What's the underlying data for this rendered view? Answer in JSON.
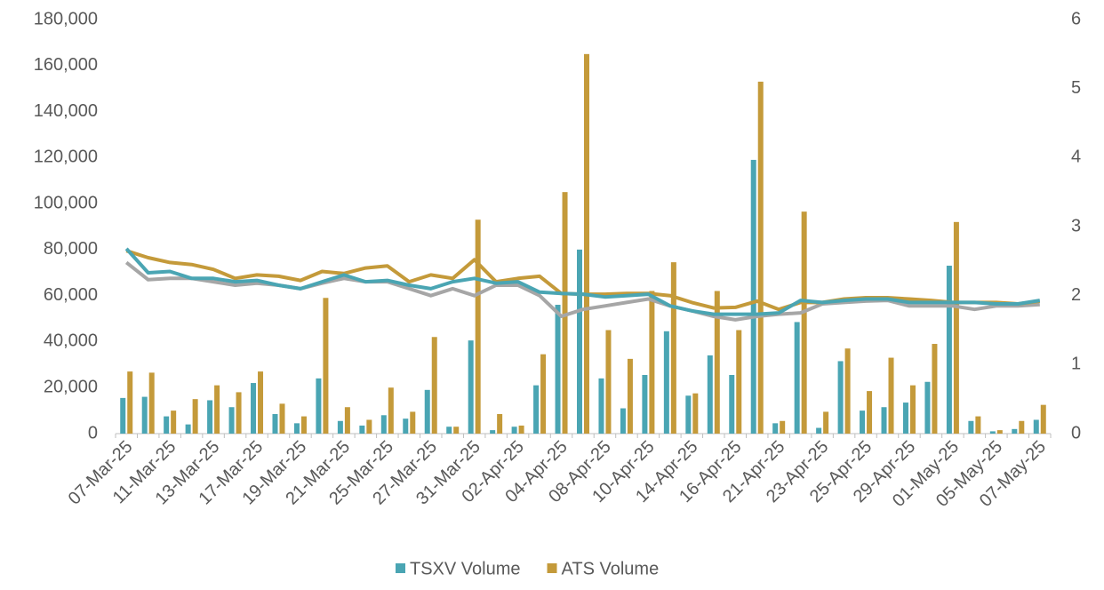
{
  "chart_data": {
    "type": "combo",
    "categories": [
      "07-Mar-25",
      null,
      "11-Mar-25",
      null,
      "13-Mar-25",
      null,
      "17-Mar-25",
      null,
      "19-Mar-25",
      null,
      "21-Mar-25",
      null,
      "25-Mar-25",
      null,
      "27-Mar-25",
      null,
      "31-Mar-25",
      null,
      "02-Apr-25",
      null,
      "04-Apr-25",
      null,
      "08-Apr-25",
      null,
      "10-Apr-25",
      null,
      "14-Apr-25",
      null,
      "16-Apr-25",
      null,
      "21-Apr-25",
      null,
      "23-Apr-25",
      null,
      "25-Apr-25",
      null,
      "29-Apr-25",
      null,
      "01-May-25",
      null,
      "05-May-25",
      null,
      "07-May-25"
    ],
    "series": [
      {
        "name": "TSXV Volume",
        "type": "bar",
        "color": "#4aa5b3",
        "values": [
          15500,
          16000,
          7500,
          4000,
          14500,
          11500,
          22000,
          8500,
          4500,
          24000,
          5500,
          3500,
          8000,
          6500,
          19000,
          3000,
          40500,
          1500,
          3000,
          21000,
          56000,
          80000,
          24000,
          11000,
          25500,
          44500,
          16500,
          34000,
          25500,
          119000,
          4500,
          48500,
          2500,
          31500,
          10000,
          11500,
          13500,
          22500,
          73000,
          5500,
          1000,
          2000,
          6000
        ]
      },
      {
        "name": "ATS Volume",
        "type": "bar",
        "color": "#c49a3a",
        "values": [
          27000,
          26500,
          10000,
          15000,
          21000,
          18000,
          27000,
          13000,
          7500,
          59000,
          11500,
          6000,
          20000,
          9500,
          42000,
          3000,
          93000,
          8500,
          3500,
          34500,
          105000,
          165000,
          45000,
          32500,
          62000,
          74500,
          17500,
          62000,
          45000,
          153000,
          5500,
          96500,
          9500,
          37000,
          18500,
          33000,
          21000,
          39000,
          92000,
          7500,
          1500,
          5500,
          12500
        ]
      },
      {
        "type": "line",
        "axis": "y2",
        "color": "#a6a6a6",
        "values": [
          2.48,
          2.23,
          2.25,
          2.25,
          2.2,
          2.15,
          2.18,
          2.15,
          2.1,
          2.18,
          2.25,
          2.2,
          2.2,
          2.1,
          2.0,
          2.1,
          2.0,
          2.15,
          2.15,
          2.0,
          1.7,
          1.8,
          1.85,
          1.9,
          1.95,
          1.85,
          1.78,
          1.7,
          1.65,
          1.7,
          1.73,
          1.75,
          1.88,
          1.9,
          1.92,
          1.93,
          1.85,
          1.85,
          1.85,
          1.8,
          1.85,
          1.85,
          1.87
        ]
      },
      {
        "type": "line",
        "axis": "y2",
        "color": "#c49a3a",
        "values": [
          2.65,
          2.55,
          2.48,
          2.45,
          2.38,
          2.25,
          2.3,
          2.28,
          2.22,
          2.35,
          2.32,
          2.4,
          2.43,
          2.2,
          2.3,
          2.25,
          2.52,
          2.2,
          2.25,
          2.28,
          2.03,
          2.02,
          2.02,
          2.03,
          2.03,
          2.0,
          1.9,
          1.82,
          1.83,
          1.92,
          1.8,
          1.9,
          1.9,
          1.95,
          1.97,
          1.97,
          1.95,
          1.93,
          1.9,
          1.9,
          1.9,
          1.88,
          1.92
        ]
      },
      {
        "type": "line",
        "axis": "y2",
        "color": "#4aa5b3",
        "values": [
          2.68,
          2.33,
          2.35,
          2.25,
          2.25,
          2.2,
          2.22,
          2.15,
          2.1,
          2.2,
          2.3,
          2.2,
          2.22,
          2.15,
          2.1,
          2.2,
          2.25,
          2.18,
          2.2,
          2.05,
          2.03,
          2.02,
          1.98,
          2.0,
          2.02,
          1.85,
          1.78,
          1.73,
          1.73,
          1.73,
          1.75,
          1.93,
          1.9,
          1.93,
          1.95,
          1.95,
          1.9,
          1.9,
          1.9,
          1.9,
          1.88,
          1.88,
          1.93
        ]
      }
    ],
    "ylim": [
      0,
      180000
    ],
    "yticks": [
      0,
      {
        "value": 20000,
        "label": "20,000"
      },
      {
        "value": 40000,
        "label": "40,000"
      },
      {
        "value": 60000,
        "label": "60,000"
      },
      {
        "value": 80000,
        "label": "80,000"
      },
      {
        "value": 100000,
        "label": "100,000"
      },
      {
        "value": 120000,
        "label": "120,000"
      },
      {
        "value": 140000,
        "label": "140,000"
      },
      {
        "value": 160000,
        "label": "160,000"
      },
      {
        "value": 180000,
        "label": "180,000"
      }
    ],
    "y2lim": [
      0,
      6
    ],
    "y2ticks": [
      0,
      1,
      2,
      3,
      4,
      5,
      6
    ],
    "legend": "bottom",
    "grid": false
  }
}
